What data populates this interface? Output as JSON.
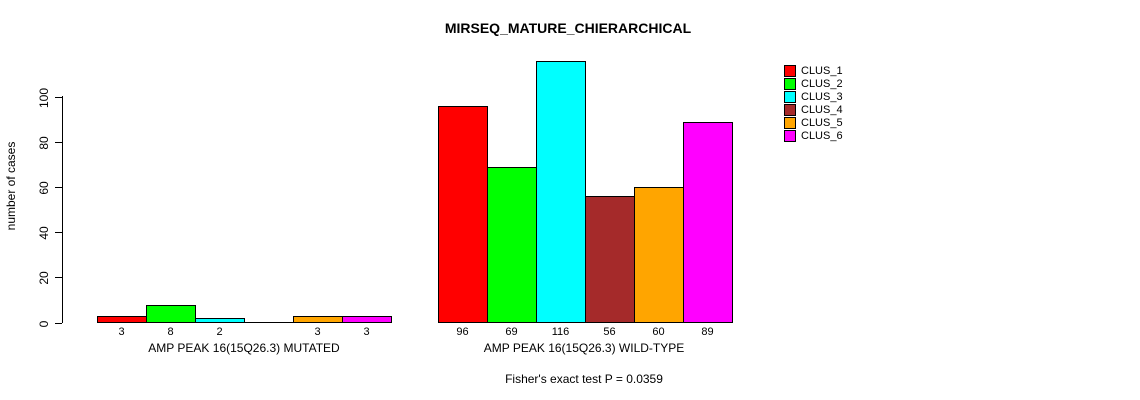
{
  "title": "MIRSEQ_MATURE_CHIERARCHICAL",
  "chart_data": {
    "type": "bar",
    "title": "MIRSEQ_MATURE_CHIERARCHICAL",
    "ylabel": "number of cases",
    "xlabel": "",
    "ylim": [
      0,
      100
    ],
    "yticks": [
      "0",
      "20",
      "40",
      "60",
      "80",
      "100"
    ],
    "ytick_values": [
      0,
      20,
      40,
      60,
      80,
      100
    ],
    "grid": "off",
    "legend_position": "right",
    "series": [
      {
        "name": "CLUS_1",
        "color": "#FF0000"
      },
      {
        "name": "CLUS_2",
        "color": "#00FF00"
      },
      {
        "name": "CLUS_3",
        "color": "#00FFFF"
      },
      {
        "name": "CLUS_4",
        "color": "#A52A2A"
      },
      {
        "name": "CLUS_5",
        "color": "#FFA500"
      },
      {
        "name": "CLUS_6",
        "color": "#FF00FF"
      }
    ],
    "groups": [
      {
        "label": "AMP PEAK 16(15Q26.3) MUTATED",
        "values": [
          3,
          8,
          2,
          0,
          3,
          3
        ],
        "bar_labels": [
          "3",
          "8",
          "2",
          "",
          "3",
          "3"
        ]
      },
      {
        "label": "AMP PEAK 16(15Q26.3) WILD-TYPE",
        "values": [
          96,
          69,
          116,
          56,
          60,
          89
        ],
        "bar_labels": [
          "96",
          "69",
          "116",
          "56",
          "60",
          "89"
        ]
      }
    ],
    "annotation": "Fisher's exact test P = 0.0359"
  }
}
